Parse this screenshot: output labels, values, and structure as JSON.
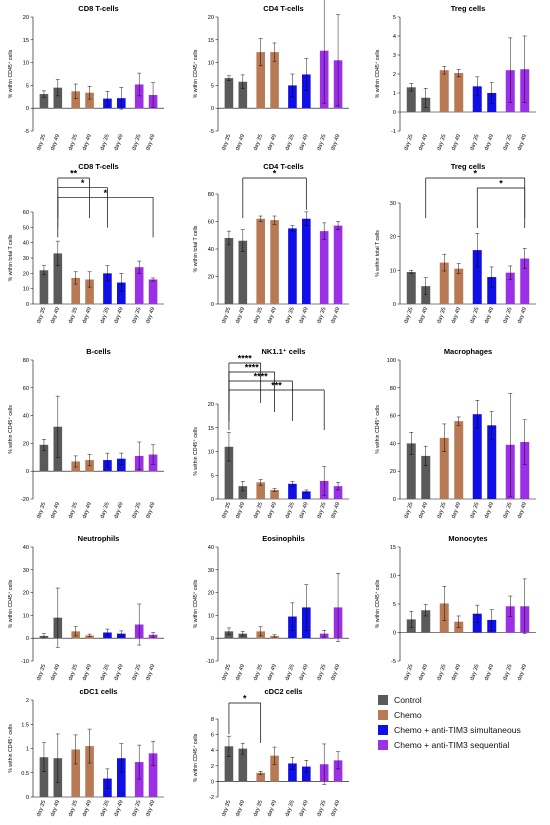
{
  "colors": {
    "Control": "#5a5a5a",
    "Chemo": "#b87a55",
    "Chemo + anti-TIM3 simultaneous": "#1010e6",
    "Chemo + anti-TIM3 sequential": "#9b30e6"
  },
  "legend": [
    {
      "label": "Control",
      "color": "#5a5a5a"
    },
    {
      "label": "Chemo",
      "color": "#b87a55"
    },
    {
      "label": "Chemo + anti-TIM3 simultaneous",
      "color": "#1010e6"
    },
    {
      "label": "Chemo + anti-TIM3 sequential",
      "color": "#9b30e6"
    }
  ],
  "x_tick_labels": [
    "day 35",
    "day 49"
  ],
  "chart_data": [
    {
      "type": "bar",
      "title": "CD8 T-cells",
      "ylabel": "% within CD45⁺ cells",
      "ylim": [
        -5,
        20
      ],
      "yticks": [
        -5,
        0,
        5,
        10,
        15,
        20
      ],
      "groups": [
        "Control",
        "Chemo",
        "Chemo + anti-TIM3 simultaneous",
        "Chemo + anti-TIM3 sequential"
      ],
      "values": [
        3.1,
        4.5,
        3.7,
        3.4,
        2.1,
        2.2,
        5.2,
        2.9
      ],
      "errors": [
        0.7,
        1.8,
        1.6,
        1.4,
        1.6,
        2.4,
        2.5,
        2.7
      ],
      "significance": []
    },
    {
      "type": "bar",
      "title": "CD4 T-cells",
      "ylabel": "% within CD45⁺ cells",
      "ylim": [
        -5,
        20
      ],
      "yticks": [
        -5,
        0,
        5,
        10,
        15,
        20
      ],
      "groups": [
        "Control",
        "Chemo",
        "Chemo + anti-TIM3 simultaneous",
        "Chemo + anti-TIM3 sequential"
      ],
      "values": [
        6.6,
        5.8,
        12.3,
        12.3,
        5.0,
        7.4,
        12.6,
        10.5
      ],
      "errors": [
        0.5,
        1.5,
        3.0,
        2.0,
        2.5,
        3.5,
        11.5,
        10.0
      ],
      "significance": []
    },
    {
      "type": "bar",
      "title": "Treg cells",
      "ylabel": "% within CD45⁺ cells",
      "ylim": [
        -1,
        5
      ],
      "yticks": [
        -1,
        0,
        1,
        2,
        3,
        4,
        5
      ],
      "groups": [
        "Control",
        "Chemo",
        "Chemo + anti-TIM3 simultaneous",
        "Chemo + anti-TIM3 sequential"
      ],
      "values": [
        1.3,
        0.75,
        2.2,
        2.05,
        1.35,
        1.0,
        2.2,
        2.25
      ],
      "errors": [
        0.2,
        0.5,
        0.2,
        0.2,
        0.5,
        0.55,
        1.7,
        1.75
      ],
      "significance": []
    },
    {
      "type": "bar",
      "title": "CD8 T-cells",
      "ylabel": "% within total T cells",
      "ylim": [
        0,
        60
      ],
      "yticks": [
        0,
        10,
        20,
        30,
        40,
        50,
        60
      ],
      "groups": [
        "Control",
        "Chemo",
        "Chemo + anti-TIM3 simultaneous",
        "Chemo + anti-TIM3 sequential"
      ],
      "values": [
        22,
        33,
        17,
        16,
        20,
        14,
        24,
        16
      ],
      "errors": [
        3,
        8,
        4,
        5,
        5,
        6,
        4,
        1
      ],
      "significance": [
        {
          "from": 1,
          "to": 3,
          "label": "**"
        },
        {
          "from": 1,
          "to": 4,
          "label": "*"
        },
        {
          "from": 1,
          "to": 7,
          "label": "*"
        }
      ]
    },
    {
      "type": "bar",
      "title": "CD4 T-cells",
      "ylabel": "% within total T cells",
      "ylim": [
        0,
        80
      ],
      "yticks": [
        0,
        20,
        40,
        60,
        80
      ],
      "groups": [
        "Control",
        "Chemo",
        "Chemo + anti-TIM3 simultaneous",
        "Chemo + anti-TIM3 sequential"
      ],
      "values": [
        48,
        46,
        62,
        61,
        55,
        62,
        53,
        57
      ],
      "errors": [
        5,
        8,
        2,
        3,
        2,
        5,
        6,
        3
      ],
      "significance": [
        {
          "from": 1,
          "to": 5,
          "label": "*"
        }
      ]
    },
    {
      "type": "bar",
      "title": "Treg cells",
      "ylabel": "% within total T cells",
      "ylim": [
        0,
        30
      ],
      "yticks": [
        0,
        10,
        20,
        30
      ],
      "groups": [
        "Control",
        "Chemo",
        "Chemo + anti-TIM3 simultaneous",
        "Chemo + anti-TIM3 sequential"
      ],
      "values": [
        9.5,
        5.3,
        12.3,
        10.5,
        16,
        8,
        9.3,
        13.5
      ],
      "errors": [
        0.5,
        2.5,
        2.5,
        1.5,
        5,
        3,
        2,
        3
      ],
      "significance": [
        {
          "from": 1,
          "to": 7,
          "label": "*"
        },
        {
          "from": 4,
          "to": 7,
          "label": "*"
        }
      ]
    },
    {
      "type": "bar",
      "title": "B-cells",
      "ylabel": "% within CD45⁺ cells",
      "ylim": [
        -20,
        80
      ],
      "yticks": [
        -20,
        0,
        20,
        40,
        60,
        80
      ],
      "groups": [
        "Control",
        "Chemo",
        "Chemo + anti-TIM3 simultaneous",
        "Chemo + anti-TIM3 sequential"
      ],
      "values": [
        19,
        32,
        7,
        8,
        8,
        9,
        11,
        12
      ],
      "errors": [
        4,
        22,
        4,
        4,
        5,
        4,
        10,
        7
      ],
      "significance": []
    },
    {
      "type": "bar",
      "title": "NK1.1⁺ cells",
      "ylabel": "% within CD45⁺ cells",
      "ylim": [
        0,
        20
      ],
      "yticks": [
        0,
        5,
        10,
        15,
        20
      ],
      "groups": [
        "Control",
        "Chemo",
        "Chemo + anti-TIM3 simultaneous",
        "Chemo + anti-TIM3 sequential"
      ],
      "values": [
        11,
        2.7,
        3.5,
        1.9,
        3.2,
        1.6,
        3.8,
        2.7
      ],
      "errors": [
        3,
        1,
        0.6,
        0.3,
        0.5,
        0.3,
        3,
        0.8
      ],
      "significance": [
        {
          "from": 0,
          "to": 2,
          "label": "****"
        },
        {
          "from": 0,
          "to": 3,
          "label": "****"
        },
        {
          "from": 0,
          "to": 4,
          "label": "****"
        },
        {
          "from": 0,
          "to": 6,
          "label": "***"
        }
      ]
    },
    {
      "type": "bar",
      "title": "Macrophages",
      "ylabel": "% within CD45⁺ cells",
      "ylim": [
        0,
        100
      ],
      "yticks": [
        0,
        20,
        40,
        60,
        80,
        100
      ],
      "groups": [
        "Control",
        "Chemo",
        "Chemo + anti-TIM3 simultaneous",
        "Chemo + anti-TIM3 sequential"
      ],
      "values": [
        40,
        31,
        44,
        56,
        61,
        53,
        39,
        41
      ],
      "errors": [
        8,
        7,
        10,
        3,
        10,
        10,
        37,
        16
      ],
      "significance": []
    },
    {
      "type": "bar",
      "title": "Neutrophils",
      "ylabel": "% within CD45⁺ cells",
      "ylim": [
        -10,
        40
      ],
      "yticks": [
        -10,
        0,
        10,
        20,
        30,
        40
      ],
      "groups": [
        "Control",
        "Chemo",
        "Chemo + anti-TIM3 simultaneous",
        "Chemo + anti-TIM3 sequential"
      ],
      "values": [
        1,
        9,
        3,
        1.2,
        2.5,
        2,
        6,
        1.5
      ],
      "errors": [
        1,
        13,
        2,
        0.6,
        1.5,
        1.2,
        9,
        1
      ],
      "significance": []
    },
    {
      "type": "bar",
      "title": "Eosinophils",
      "ylabel": "% within CD45⁺ cells",
      "ylim": [
        -10,
        40
      ],
      "yticks": [
        -10,
        0,
        10,
        20,
        30,
        40
      ],
      "groups": [
        "Control",
        "Chemo",
        "Chemo + anti-TIM3 simultaneous",
        "Chemo + anti-TIM3 sequential"
      ],
      "values": [
        3,
        2,
        3,
        1,
        9.5,
        13.5,
        2,
        13.5
      ],
      "errors": [
        1.5,
        1,
        2,
        0.5,
        6,
        10,
        1.5,
        15
      ],
      "significance": []
    },
    {
      "type": "bar",
      "title": "Monocytes",
      "ylabel": "% within CD45⁺ cells",
      "ylim": [
        -5,
        15
      ],
      "yticks": [
        -5,
        0,
        5,
        10,
        15
      ],
      "groups": [
        "Control",
        "Chemo",
        "Chemo + anti-TIM3 simultaneous",
        "Chemo + anti-TIM3 sequential"
      ],
      "values": [
        2.3,
        3.9,
        5.1,
        1.9,
        3.3,
        2.2,
        4.6,
        4.6
      ],
      "errors": [
        1.4,
        1.0,
        3.0,
        1.0,
        1.5,
        1.8,
        1.8,
        4.8
      ],
      "significance": []
    },
    {
      "type": "bar",
      "title": "cDC1 cells",
      "ylabel": "% within CD45⁺ cells",
      "ylim": [
        0,
        2.0
      ],
      "yticks": [
        0,
        0.5,
        1.0,
        1.5,
        2.0
      ],
      "groups": [
        "Control",
        "Chemo",
        "Chemo + anti-TIM3 simultaneous",
        "Chemo + anti-TIM3 sequential"
      ],
      "values": [
        0.82,
        0.8,
        0.98,
        1.05,
        0.38,
        0.8,
        0.72,
        0.9
      ],
      "errors": [
        0.3,
        0.5,
        0.3,
        0.35,
        0.2,
        0.3,
        0.35,
        0.25
      ],
      "significance": []
    },
    {
      "type": "bar",
      "title": "cDC2 cells",
      "ylabel": "% within CD45⁺ cells",
      "ylim": [
        -2,
        8
      ],
      "yticks": [
        -2,
        0,
        2,
        4,
        6,
        8
      ],
      "groups": [
        "Control",
        "Chemo",
        "Chemo + anti-TIM3 simultaneous",
        "Chemo + anti-TIM3 sequential"
      ],
      "values": [
        4.5,
        4.2,
        1.1,
        3.3,
        2.3,
        1.9,
        2.2,
        2.7
      ],
      "errors": [
        1.3,
        0.7,
        0.2,
        1.1,
        0.8,
        0.8,
        2.6,
        1.1
      ],
      "significance": [
        {
          "from": 0,
          "to": 2,
          "label": "*"
        }
      ]
    }
  ]
}
